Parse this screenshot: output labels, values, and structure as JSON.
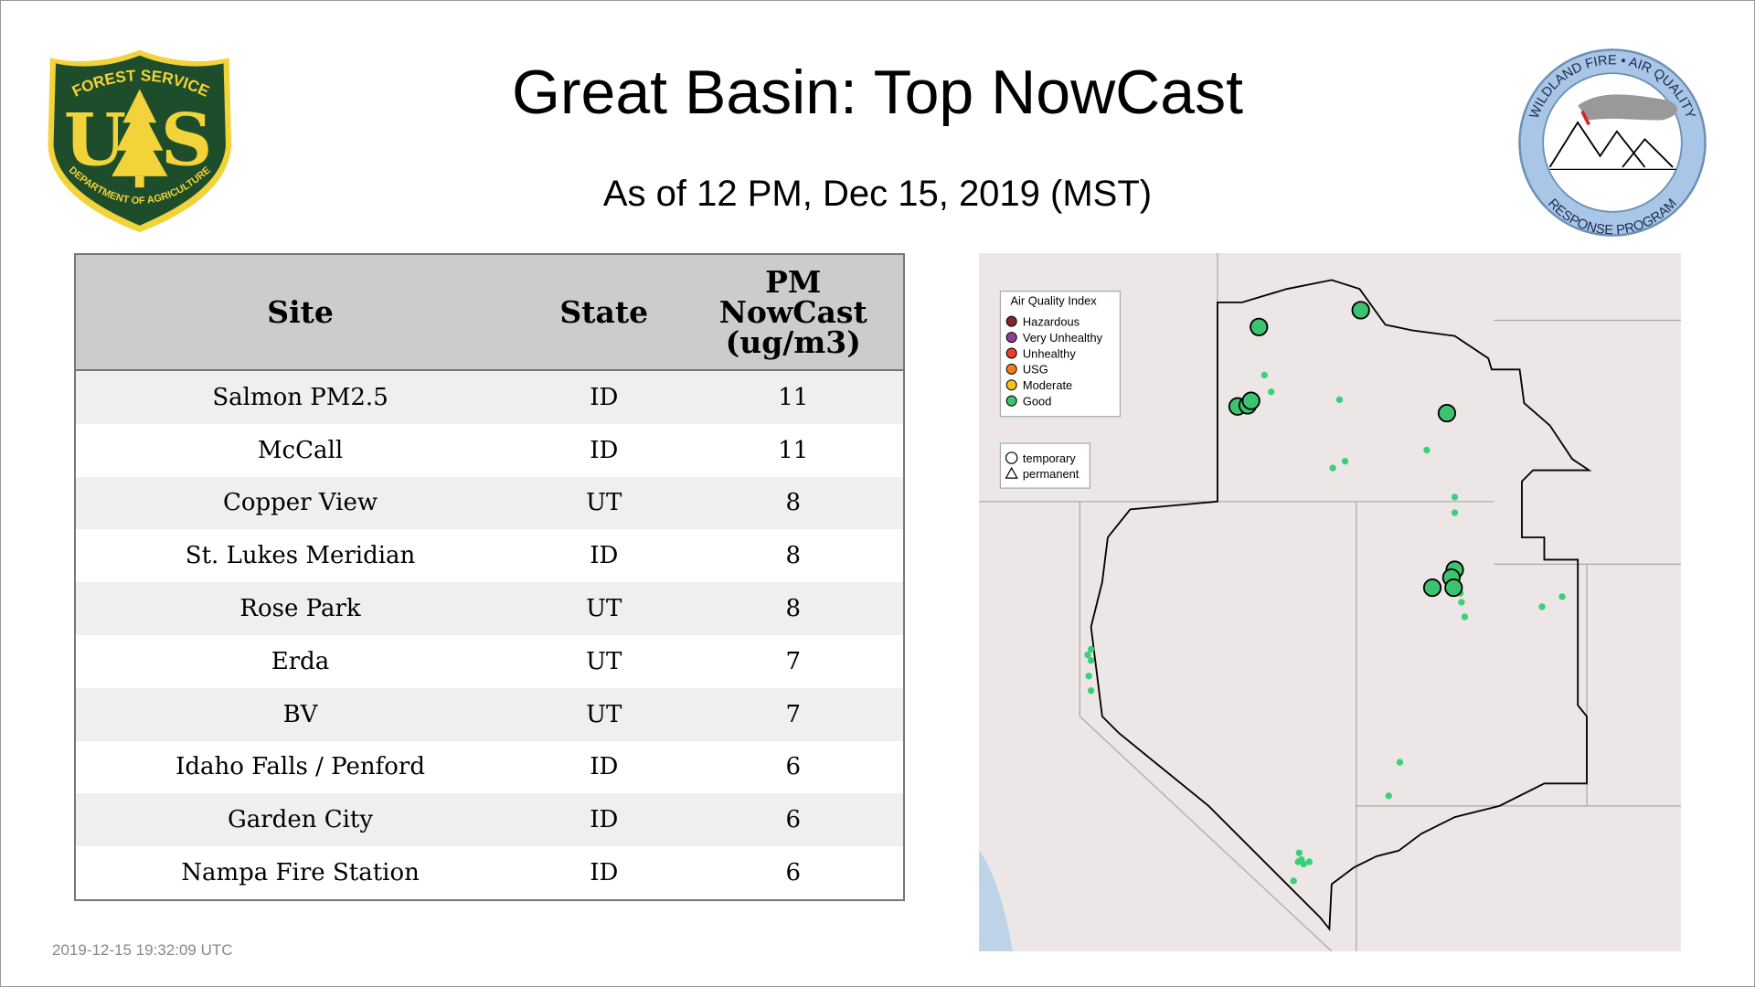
{
  "header": {
    "title": "Great Basin: Top NowCast",
    "subtitle": "As of 12 PM, Dec 15, 2019 (MST)"
  },
  "logos": {
    "forest_service": {
      "top": "FOREST SERVICE",
      "letters": [
        "U",
        "S"
      ],
      "bottom": "DEPARTMENT OF AGRICULTURE"
    },
    "wildland_fire": {
      "top": "WILDLAND FIRE • AIR QUALITY",
      "bottom": "RESPONSE PROGRAM"
    }
  },
  "table": {
    "columns": [
      "Site",
      "State",
      "PM NowCast (ug/m3)"
    ],
    "rows": [
      [
        "Salmon PM2.5",
        "ID",
        11
      ],
      [
        "McCall",
        "ID",
        11
      ],
      [
        "Copper View",
        "UT",
        8
      ],
      [
        "St. Lukes Meridian",
        "ID",
        8
      ],
      [
        "Rose Park",
        "UT",
        8
      ],
      [
        "Erda",
        "UT",
        7
      ],
      [
        "BV",
        "UT",
        7
      ],
      [
        "Idaho Falls / Penford",
        "ID",
        6
      ],
      [
        "Garden City",
        "ID",
        6
      ],
      [
        "Nampa Fire Station",
        "ID",
        6
      ]
    ]
  },
  "map": {
    "legend": {
      "title": "Air Quality Index",
      "items": [
        {
          "label": "Hazardous",
          "color": "#7e2a2a"
        },
        {
          "label": "Very Unhealthy",
          "color": "#8f3f97"
        },
        {
          "label": "Unhealthy",
          "color": "#e8402f"
        },
        {
          "label": "USG",
          "color": "#f07d21"
        },
        {
          "label": "Moderate",
          "color": "#f2c31b"
        },
        {
          "label": "Good",
          "color": "#3cc36f"
        }
      ]
    },
    "shape_legend": [
      "temporary",
      "permanent"
    ]
  },
  "footer": {
    "timestamp": "2019-12-15 19:32:09 UTC"
  }
}
